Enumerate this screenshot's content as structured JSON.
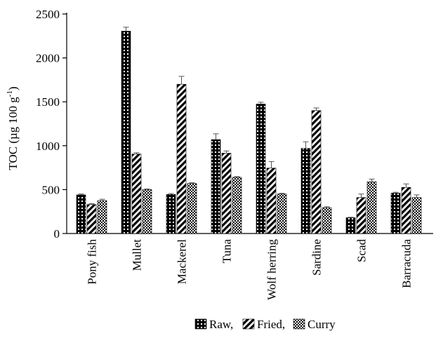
{
  "chart_data": {
    "type": "bar",
    "ylabel_main": "TOC (µg 100 g",
    "ylabel_sup": "-1",
    "ylabel_close": ")",
    "ylim": [
      0,
      2500
    ],
    "yticks": [
      0,
      500,
      1000,
      1500,
      2000,
      2500
    ],
    "categories": [
      "Pony fish",
      "Mullet",
      "Mackerel",
      "Tuna",
      "Wolf herring",
      "Sardine",
      "Scad",
      "Barracuda"
    ],
    "series": [
      {
        "name": "Raw",
        "pattern": "dots",
        "values": [
          440,
          2305,
          445,
          1070,
          1475,
          970,
          180,
          460
        ],
        "errors": [
          10,
          45,
          10,
          65,
          20,
          75,
          5,
          10
        ]
      },
      {
        "name": "Fried",
        "pattern": "stripes",
        "values": [
          330,
          905,
          1700,
          915,
          745,
          1400,
          410,
          525
        ],
        "errors": [
          10,
          15,
          90,
          25,
          75,
          30,
          40,
          40
        ]
      },
      {
        "name": "Curry",
        "pattern": "checker",
        "values": [
          375,
          500,
          570,
          640,
          450,
          295,
          590,
          410
        ],
        "errors": [
          15,
          8,
          8,
          8,
          8,
          10,
          30,
          30
        ]
      }
    ],
    "legend_sep": ","
  },
  "colors": {
    "bar": "#000000",
    "background": "#ffffff"
  }
}
